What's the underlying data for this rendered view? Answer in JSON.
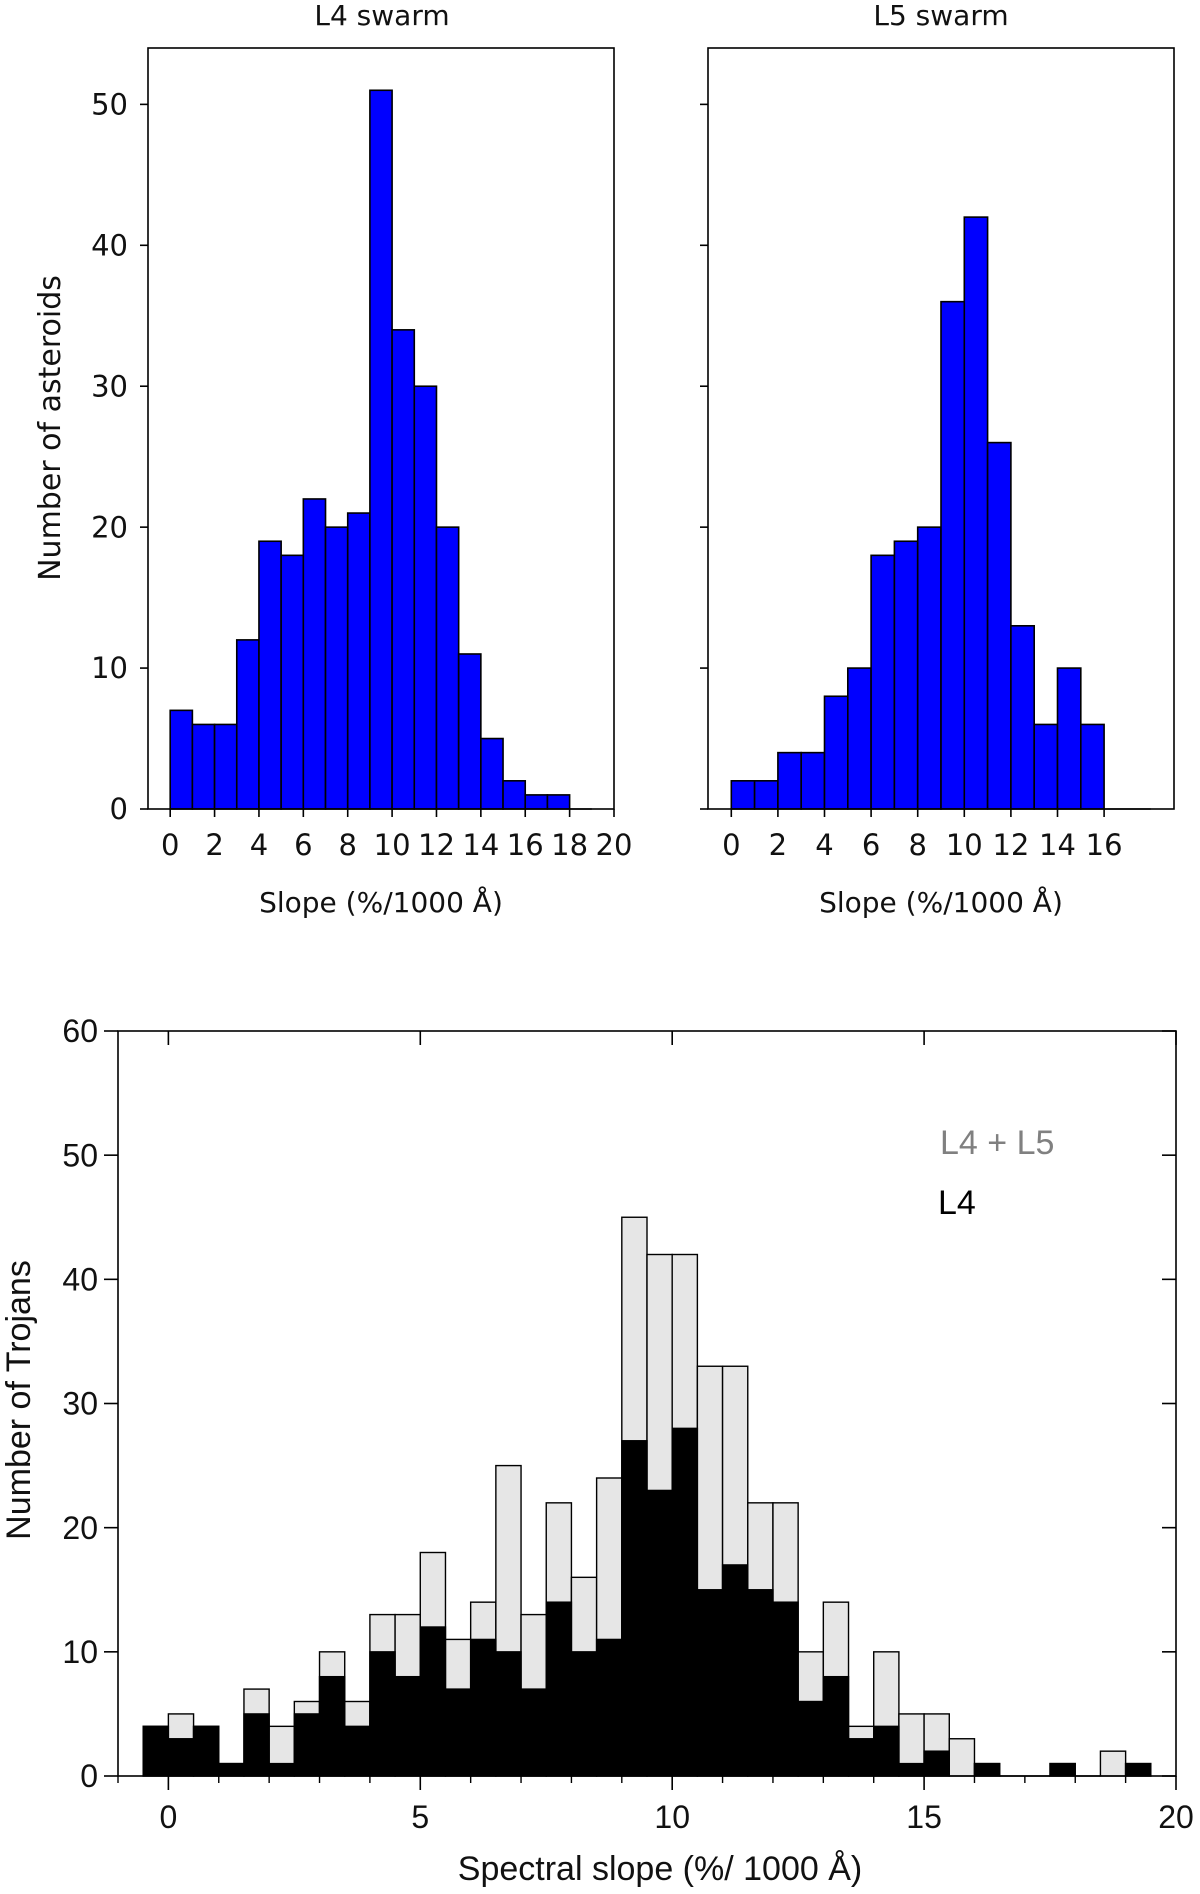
{
  "chart_data": [
    {
      "type": "bar",
      "title": "L4 swarm",
      "xlabel": "Slope (%/1000 Å)",
      "ylabel": "Number of asteroids",
      "xlim": [
        -1,
        20
      ],
      "ylim": [
        0,
        54
      ],
      "bin_width": 1,
      "bin_starts": [
        0,
        1,
        2,
        3,
        4,
        5,
        6,
        7,
        8,
        9,
        10,
        11,
        12,
        13,
        14,
        15,
        16,
        17,
        18
      ],
      "values": [
        7,
        6,
        6,
        12,
        19,
        18,
        22,
        20,
        21,
        51,
        34,
        30,
        20,
        11,
        5,
        2,
        1,
        1,
        0
      ],
      "x_ticks": [
        "0",
        "2",
        "4",
        "6",
        "8",
        "10",
        "12",
        "14",
        "16",
        "18",
        "20"
      ],
      "y_ticks": [
        "0",
        "10",
        "20",
        "30",
        "40",
        "50"
      ],
      "bar_color": "#0000ff"
    },
    {
      "type": "bar",
      "title": "L5 swarm",
      "xlabel": "Slope (%/1000 Å)",
      "ylabel": "",
      "xlim": [
        -1,
        19
      ],
      "ylim": [
        0,
        54
      ],
      "bin_width": 1,
      "bin_starts": [
        0,
        1,
        2,
        3,
        4,
        5,
        6,
        7,
        8,
        9,
        10,
        11,
        12,
        13,
        14,
        15,
        16,
        17
      ],
      "values": [
        2,
        2,
        4,
        4,
        8,
        10,
        18,
        19,
        20,
        36,
        42,
        26,
        13,
        6,
        10,
        6,
        0,
        0
      ],
      "x_ticks": [
        "0",
        "2",
        "4",
        "6",
        "8",
        "10",
        "12",
        "14",
        "16"
      ],
      "y_ticks": [
        "0",
        "10",
        "20",
        "30",
        "40",
        "50"
      ],
      "bar_color": "#0000ff"
    },
    {
      "type": "bar",
      "title": "",
      "xlabel": "Spectral slope (%/ 1000 Å)",
      "ylabel": "Number of Trojans",
      "xlim": [
        -1,
        20
      ],
      "ylim": [
        0,
        60
      ],
      "bin_width": 0.5,
      "bin_starts": [
        -0.5,
        0,
        0.5,
        1,
        1.5,
        2,
        2.5,
        3,
        3.5,
        4,
        4.5,
        5,
        5.5,
        6,
        6.5,
        7,
        7.5,
        8,
        8.5,
        9,
        9.5,
        10,
        10.5,
        11,
        11.5,
        12,
        12.5,
        13,
        13.5,
        14,
        14.5,
        15,
        15.5,
        16,
        16.5,
        17,
        17.5,
        18,
        18.5,
        19
      ],
      "series": [
        {
          "name": "L4 + L5",
          "color": "#e6e6e6",
          "values": [
            4,
            5,
            4,
            1,
            7,
            4,
            6,
            10,
            6,
            13,
            13,
            18,
            11,
            14,
            25,
            13,
            22,
            16,
            24,
            45,
            42,
            42,
            33,
            33,
            22,
            22,
            10,
            14,
            4,
            10,
            5,
            5,
            3,
            1,
            0,
            0,
            1,
            0,
            2,
            1
          ]
        },
        {
          "name": "L4",
          "color": "#000000",
          "values": [
            4,
            3,
            4,
            1,
            5,
            1,
            5,
            8,
            4,
            10,
            8,
            12,
            7,
            11,
            10,
            7,
            14,
            10,
            11,
            27,
            23,
            28,
            15,
            17,
            15,
            14,
            6,
            8,
            3,
            4,
            1,
            2,
            0,
            1,
            0,
            0,
            1,
            0,
            0,
            1
          ]
        }
      ],
      "legend": [
        "L4 + L5",
        "L4"
      ],
      "legend_colors": [
        "#808080",
        "#000000"
      ],
      "x_ticks": [
        "0",
        "5",
        "10",
        "15",
        "20"
      ],
      "y_ticks": [
        "0",
        "10",
        "20",
        "30",
        "40",
        "50",
        "60"
      ]
    }
  ]
}
